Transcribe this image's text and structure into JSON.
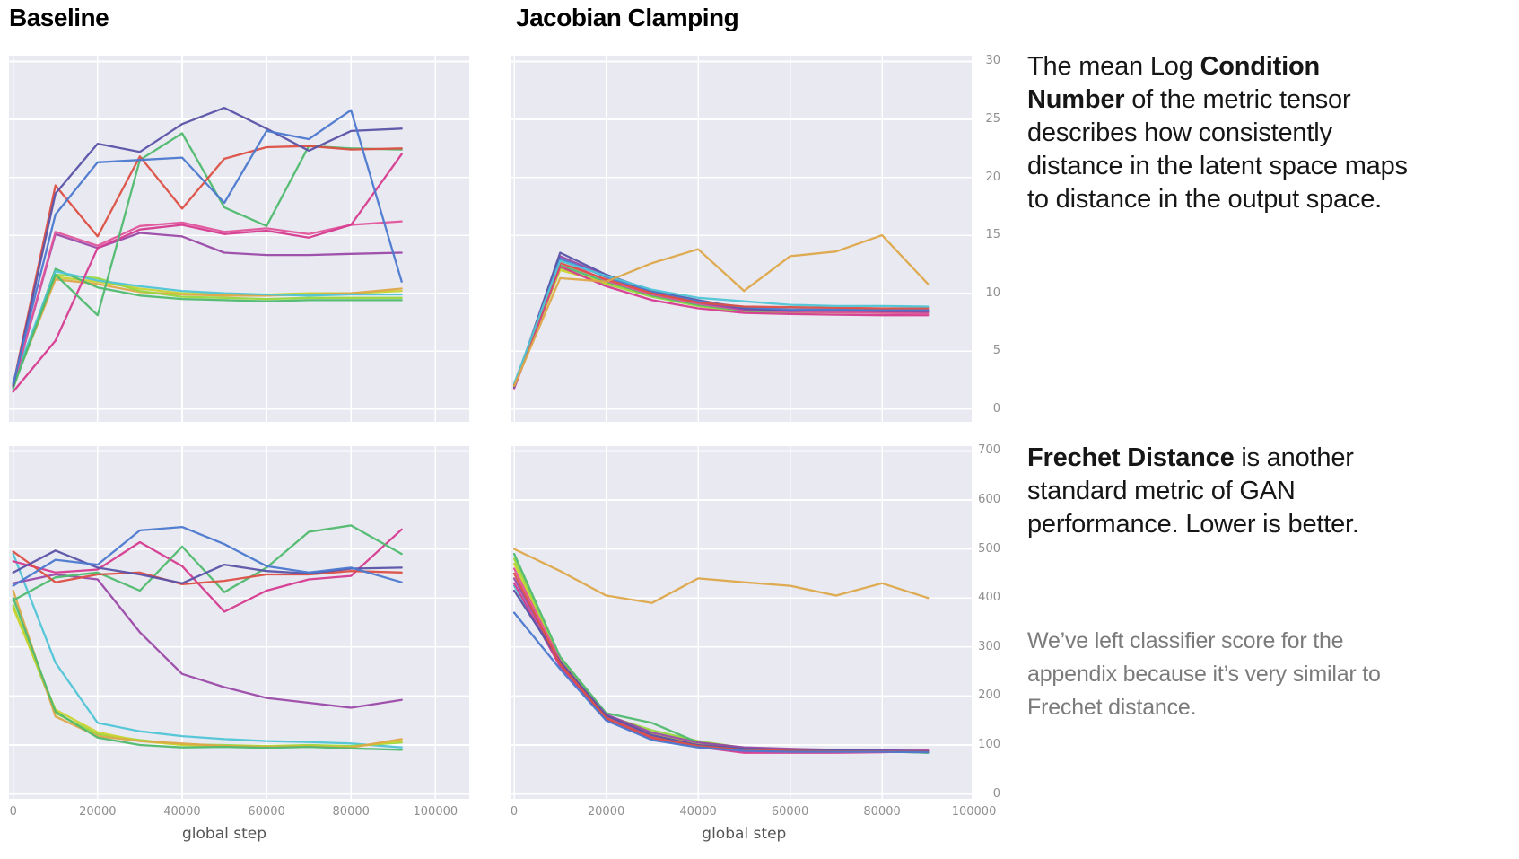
{
  "headers": {
    "baseline": "Baseline",
    "jacobian": "Jacobian Clamping"
  },
  "annotations": {
    "condition_number": {
      "segments": [
        {
          "text": "The mean Log ",
          "bold": false
        },
        {
          "text": "Condition Number",
          "bold": true
        },
        {
          "text": " of the metric tensor describes  how consistently distance in the latent space maps to distance in the output space.",
          "bold": false
        }
      ]
    },
    "frechet": {
      "segments": [
        {
          "text": "Frechet Distance",
          "bold": true
        },
        {
          "text": " is another standard metric of GAN performance. Lower is better.",
          "bold": false
        }
      ]
    },
    "note": {
      "text": "We’ve left classifier score for the appendix because it’s very similar to Frechet distance."
    }
  },
  "axis": {
    "xlabel": "global step"
  },
  "palette": {
    "plot_background": "#e9e9f1",
    "gridline": "#ffffff",
    "tick_label": "#8f8f8f",
    "axis_label": "#555555",
    "heading_text": "#000000",
    "body_text": "#161616",
    "note_text": "#7b7b7b",
    "series": {
      "blue": "#4c79cf",
      "indigo": "#5a53a7",
      "red": "#dd4f43",
      "green": "#4fba6e",
      "magenta": "#d63b8f",
      "pink": "#e1549b",
      "purple": "#9b4aa8",
      "cyan": "#4fc5d6",
      "yellowgreen": "#97d83e",
      "olive": "#c9d32f",
      "orange": "#dda849"
    }
  },
  "chart_data": [
    {
      "id": "baseline-condition",
      "type": "line",
      "column": "Baseline",
      "metric": "mean log condition number",
      "xlabel": "global step",
      "xlim": [
        -1000,
        108000
      ],
      "ylim": [
        -1.1,
        30.5
      ],
      "x_gridlines": [
        0,
        20000,
        40000,
        60000,
        80000,
        100000
      ],
      "y_gridlines": [
        0,
        5,
        10,
        15,
        20,
        25,
        30
      ],
      "show_y_ticks": false,
      "show_x_ticks": false,
      "show_x_label": false,
      "x": [
        0,
        10000,
        20000,
        30000,
        40000,
        50000,
        60000,
        70000,
        80000,
        92000
      ],
      "series": [
        {
          "name": "run-olive",
          "color": "olive",
          "values": [
            2.1,
            11.4,
            11.0,
            10.4,
            10.0,
            9.9,
            9.9,
            10.0,
            10.0,
            10.2
          ]
        },
        {
          "name": "run-orange",
          "color": "orange",
          "values": [
            2.0,
            11.2,
            10.8,
            10.1,
            9.9,
            9.8,
            9.8,
            9.9,
            10.0,
            10.4
          ]
        },
        {
          "name": "run-yellowgreen",
          "color": "yellowgreen",
          "values": [
            2.2,
            11.6,
            11.3,
            10.2,
            9.7,
            9.6,
            9.5,
            9.6,
            9.6,
            9.6
          ]
        },
        {
          "name": "run-green-low",
          "color": "green",
          "values": [
            1.8,
            12.1,
            10.5,
            9.8,
            9.5,
            9.4,
            9.3,
            9.4,
            9.4,
            9.4
          ]
        },
        {
          "name": "run-cyan",
          "color": "cyan",
          "values": [
            2.3,
            11.9,
            11.1,
            10.6,
            10.2,
            10.0,
            9.9,
            9.8,
            9.9,
            9.9
          ]
        },
        {
          "name": "run-purple",
          "color": "purple",
          "values": [
            2.0,
            15.1,
            13.9,
            15.2,
            14.9,
            13.5,
            13.3,
            13.3,
            13.4,
            13.5
          ]
        },
        {
          "name": "run-pink",
          "color": "pink",
          "values": [
            2.0,
            15.3,
            14.1,
            15.8,
            16.1,
            15.3,
            15.6,
            15.1,
            15.9,
            16.2
          ]
        },
        {
          "name": "run-magenta",
          "color": "magenta",
          "values": [
            1.5,
            5.9,
            13.9,
            15.5,
            15.9,
            15.1,
            15.4,
            14.8,
            15.9,
            22.0
          ]
        },
        {
          "name": "run-green",
          "color": "green",
          "values": [
            1.9,
            11.6,
            8.1,
            21.5,
            23.8,
            17.4,
            15.8,
            22.7,
            22.5,
            22.4
          ]
        },
        {
          "name": "run-red",
          "color": "red",
          "values": [
            2.1,
            19.3,
            14.9,
            21.8,
            17.3,
            21.6,
            22.6,
            22.7,
            22.4,
            22.5
          ]
        },
        {
          "name": "run-indigo",
          "color": "indigo",
          "values": [
            2.0,
            18.6,
            22.9,
            22.2,
            24.6,
            26.0,
            24.2,
            22.3,
            24.0,
            24.2
          ]
        },
        {
          "name": "run-blue",
          "color": "blue",
          "values": [
            2.2,
            16.8,
            21.3,
            21.5,
            21.7,
            17.8,
            24.0,
            23.3,
            25.8,
            11.0
          ]
        }
      ]
    },
    {
      "id": "jc-condition",
      "type": "line",
      "column": "Jacobian Clamping",
      "metric": "mean log condition number",
      "xlabel": "global step",
      "xlim": [
        -600,
        99500
      ],
      "ylim": [
        -1.1,
        30.5
      ],
      "x_gridlines": [
        0,
        20000,
        40000,
        60000,
        80000
      ],
      "y_gridlines": [
        0,
        5,
        10,
        15,
        20,
        25,
        30
      ],
      "show_y_ticks": true,
      "show_x_ticks": false,
      "show_x_label": false,
      "x": [
        0,
        10000,
        20000,
        30000,
        40000,
        50000,
        60000,
        70000,
        80000,
        90000
      ],
      "series": [
        {
          "name": "run-yellowgreen",
          "color": "yellowgreen",
          "values": [
            2.1,
            12.2,
            10.8,
            9.7,
            8.9,
            8.4,
            8.3,
            8.35,
            8.3,
            8.3
          ]
        },
        {
          "name": "run-olive",
          "color": "olive",
          "values": [
            2.0,
            12.0,
            10.9,
            9.8,
            9.0,
            8.5,
            8.45,
            8.4,
            8.4,
            8.35
          ]
        },
        {
          "name": "run-green",
          "color": "green",
          "values": [
            2.0,
            12.4,
            11.0,
            9.8,
            9.0,
            8.5,
            8.4,
            8.45,
            8.4,
            8.4
          ]
        },
        {
          "name": "run-magenta",
          "color": "magenta",
          "values": [
            1.8,
            12.3,
            10.6,
            9.4,
            8.7,
            8.3,
            8.2,
            8.15,
            8.1,
            8.1
          ]
        },
        {
          "name": "run-pink",
          "color": "pink",
          "values": [
            2.0,
            12.9,
            11.1,
            9.9,
            9.1,
            8.55,
            8.4,
            8.35,
            8.3,
            8.25
          ]
        },
        {
          "name": "run-purple",
          "color": "purple",
          "values": [
            1.9,
            13.2,
            11.5,
            10.1,
            9.2,
            8.6,
            8.5,
            8.5,
            8.45,
            8.4
          ]
        },
        {
          "name": "run-indigo",
          "color": "indigo",
          "values": [
            1.9,
            13.5,
            11.6,
            10.2,
            9.4,
            8.7,
            8.5,
            8.55,
            8.5,
            8.5
          ]
        },
        {
          "name": "run-blue",
          "color": "blue",
          "values": [
            2.0,
            13.0,
            11.4,
            10.1,
            9.3,
            8.8,
            8.6,
            8.6,
            8.6,
            8.55
          ]
        },
        {
          "name": "run-red",
          "color": "red",
          "values": [
            2.1,
            12.6,
            11.2,
            10.0,
            9.2,
            8.85,
            8.8,
            8.75,
            8.7,
            8.7
          ]
        },
        {
          "name": "run-cyan",
          "color": "cyan",
          "values": [
            2.2,
            12.8,
            11.5,
            10.3,
            9.6,
            9.3,
            9.0,
            8.9,
            8.9,
            8.85
          ]
        },
        {
          "name": "run-orange",
          "color": "orange",
          "values": [
            2.0,
            11.3,
            11.0,
            12.6,
            13.8,
            10.2,
            13.2,
            13.6,
            15.0,
            10.8
          ]
        }
      ]
    },
    {
      "id": "baseline-frechet",
      "type": "line",
      "column": "Baseline",
      "metric": "Frechet distance",
      "xlabel": "global step",
      "xlim": [
        -1000,
        108000
      ],
      "ylim": [
        -10,
        710
      ],
      "x_gridlines": [
        0,
        20000,
        40000,
        60000,
        80000,
        100000
      ],
      "y_gridlines": [
        0,
        100,
        200,
        300,
        400,
        500,
        600,
        700
      ],
      "show_y_ticks": false,
      "show_x_ticks": true,
      "show_x_label": true,
      "x": [
        0,
        10000,
        20000,
        30000,
        40000,
        50000,
        60000,
        70000,
        80000,
        92000
      ],
      "series": [
        {
          "name": "run-cyan",
          "color": "cyan",
          "values": [
            490,
            268,
            145,
            128,
            118,
            112,
            108,
            106,
            103,
            95
          ]
        },
        {
          "name": "run-yellowgreen",
          "color": "yellowgreen",
          "values": [
            385,
            165,
            122,
            110,
            101,
            100,
            98,
            100,
            98,
            105
          ]
        },
        {
          "name": "run-olive",
          "color": "olive",
          "values": [
            380,
            172,
            126,
            108,
            100,
            98,
            97,
            98,
            96,
            108
          ]
        },
        {
          "name": "run-orange",
          "color": "orange",
          "values": [
            415,
            158,
            118,
            108,
            103,
            98,
            96,
            97,
            95,
            112
          ]
        },
        {
          "name": "run-green-low",
          "color": "green",
          "values": [
            400,
            168,
            115,
            100,
            95,
            96,
            94,
            96,
            93,
            90
          ]
        },
        {
          "name": "run-purple",
          "color": "purple",
          "values": [
            430,
            448,
            438,
            330,
            245,
            218,
            196,
            186,
            176,
            192
          ]
        },
        {
          "name": "run-magenta",
          "color": "magenta",
          "values": [
            475,
            452,
            458,
            514,
            465,
            372,
            415,
            438,
            445,
            540
          ]
        },
        {
          "name": "run-green",
          "color": "green",
          "values": [
            395,
            442,
            452,
            415,
            505,
            412,
            462,
            535,
            548,
            490
          ]
        },
        {
          "name": "run-red",
          "color": "red",
          "values": [
            495,
            432,
            448,
            452,
            428,
            435,
            448,
            448,
            455,
            452
          ]
        },
        {
          "name": "run-indigo",
          "color": "indigo",
          "values": [
            452,
            497,
            462,
            448,
            430,
            468,
            455,
            450,
            460,
            462
          ]
        },
        {
          "name": "run-blue",
          "color": "blue",
          "values": [
            425,
            478,
            468,
            538,
            545,
            510,
            465,
            452,
            462,
            432
          ]
        }
      ]
    },
    {
      "id": "jc-frechet",
      "type": "line",
      "column": "Jacobian Clamping",
      "metric": "Frechet distance",
      "xlabel": "global step",
      "xlim": [
        -600,
        99500
      ],
      "ylim": [
        -10,
        710
      ],
      "x_gridlines": [
        0,
        20000,
        40000,
        60000,
        80000,
        100000
      ],
      "y_gridlines": [
        0,
        100,
        200,
        300,
        400,
        500,
        600,
        700
      ],
      "show_y_ticks": true,
      "show_x_ticks": true,
      "show_x_label": true,
      "x": [
        0,
        10000,
        20000,
        30000,
        40000,
        50000,
        60000,
        70000,
        80000,
        90000
      ],
      "series": [
        {
          "name": "run-yellowgreen",
          "color": "yellowgreen",
          "values": [
            480,
            275,
            160,
            130,
            108,
            94,
            90,
            88,
            87,
            84
          ]
        },
        {
          "name": "run-olive",
          "color": "olive",
          "values": [
            470,
            270,
            157,
            122,
            102,
            92,
            89,
            87,
            86,
            85
          ]
        },
        {
          "name": "run-green",
          "color": "green",
          "values": [
            490,
            280,
            165,
            145,
            105,
            93,
            90,
            89,
            88,
            84
          ]
        },
        {
          "name": "run-cyan",
          "color": "cyan",
          "values": [
            425,
            262,
            154,
            116,
            98,
            89,
            87,
            86,
            86,
            85
          ]
        },
        {
          "name": "run-magenta",
          "color": "magenta",
          "values": [
            430,
            260,
            152,
            112,
            96,
            84,
            84,
            84,
            85,
            88
          ]
        },
        {
          "name": "run-pink",
          "color": "pink",
          "values": [
            460,
            272,
            158,
            118,
            99,
            88,
            85,
            85,
            86,
            89
          ]
        },
        {
          "name": "run-purple",
          "color": "purple",
          "values": [
            440,
            268,
            162,
            125,
            105,
            95,
            92,
            90,
            89,
            88
          ]
        },
        {
          "name": "run-indigo",
          "color": "indigo",
          "values": [
            415,
            270,
            160,
            120,
            100,
            92,
            90,
            89,
            88,
            87
          ]
        },
        {
          "name": "run-red",
          "color": "red",
          "values": [
            450,
            265,
            155,
            115,
            98,
            90,
            88,
            87,
            87,
            86
          ]
        },
        {
          "name": "run-blue",
          "color": "blue",
          "values": [
            370,
            255,
            150,
            110,
            95,
            88,
            86,
            86,
            86,
            85
          ]
        },
        {
          "name": "run-orange",
          "color": "orange",
          "values": [
            500,
            455,
            405,
            390,
            440,
            432,
            425,
            405,
            430,
            400
          ]
        }
      ]
    }
  ]
}
